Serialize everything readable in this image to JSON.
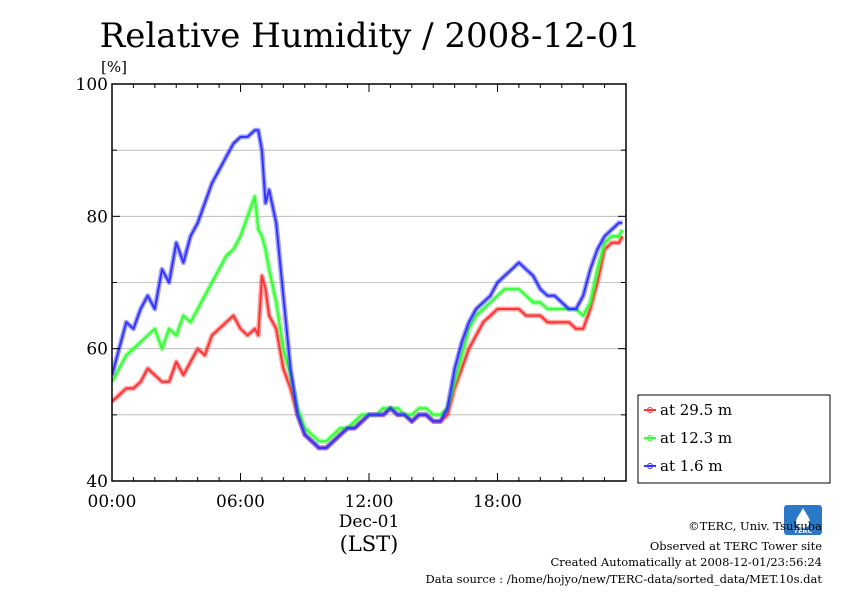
{
  "chart_data": {
    "type": "line",
    "title": "Relative Humidity / 2008-12-01",
    "ylabel": "[%]",
    "xlabel": "(LST)",
    "x_date_label": "Dec-01",
    "ylim": [
      40,
      100
    ],
    "xlim": [
      "00:00",
      "24:00"
    ],
    "y_ticks": [
      40,
      60,
      80,
      100
    ],
    "x_ticks": [
      "00:00",
      "06:00",
      "12:00",
      "18:00"
    ],
    "grid": true,
    "legend_position": "right",
    "series": [
      {
        "name": "at 29.5 m",
        "color": "#ff3333",
        "x": [
          "00:00",
          "00:20",
          "00:40",
          "01:00",
          "01:20",
          "01:40",
          "02:00",
          "02:20",
          "02:40",
          "03:00",
          "03:20",
          "03:40",
          "04:00",
          "04:20",
          "04:40",
          "05:00",
          "05:20",
          "05:40",
          "06:00",
          "06:20",
          "06:40",
          "06:50",
          "07:00",
          "07:10",
          "07:20",
          "07:40",
          "08:00",
          "08:20",
          "08:40",
          "09:00",
          "09:20",
          "09:40",
          "10:00",
          "10:20",
          "10:40",
          "11:00",
          "11:20",
          "11:40",
          "12:00",
          "12:20",
          "12:40",
          "13:00",
          "13:20",
          "13:40",
          "14:00",
          "14:20",
          "14:40",
          "15:00",
          "15:20",
          "15:40",
          "16:00",
          "16:20",
          "16:40",
          "17:00",
          "17:20",
          "17:40",
          "18:00",
          "18:20",
          "18:40",
          "19:00",
          "19:20",
          "19:40",
          "20:00",
          "20:20",
          "20:40",
          "21:00",
          "21:20",
          "21:40",
          "22:00",
          "22:20",
          "22:40",
          "23:00",
          "23:20",
          "23:40",
          "23:50"
        ],
        "values": [
          52,
          53,
          54,
          54,
          55,
          57,
          56,
          55,
          55,
          58,
          56,
          58,
          60,
          59,
          62,
          63,
          64,
          65,
          63,
          62,
          63,
          62,
          71,
          69,
          65,
          63,
          57,
          54,
          50,
          47,
          46,
          45,
          45,
          46,
          47,
          48,
          48,
          49,
          50,
          50,
          50,
          51,
          50,
          50,
          49,
          50,
          50,
          49,
          49,
          50,
          54,
          57,
          60,
          62,
          64,
          65,
          66,
          66,
          66,
          66,
          65,
          65,
          65,
          64,
          64,
          64,
          64,
          63,
          63,
          66,
          70,
          75,
          76,
          76,
          77
        ]
      },
      {
        "name": "at 12.3 m",
        "color": "#33ff33",
        "x": [
          "00:00",
          "00:20",
          "00:40",
          "01:00",
          "01:20",
          "01:40",
          "02:00",
          "02:20",
          "02:40",
          "03:00",
          "03:20",
          "03:40",
          "04:00",
          "04:20",
          "04:40",
          "05:00",
          "05:20",
          "05:40",
          "06:00",
          "06:20",
          "06:40",
          "06:50",
          "07:00",
          "07:10",
          "07:20",
          "07:40",
          "08:00",
          "08:20",
          "08:40",
          "09:00",
          "09:20",
          "09:40",
          "10:00",
          "10:20",
          "10:40",
          "11:00",
          "11:20",
          "11:40",
          "12:00",
          "12:20",
          "12:40",
          "13:00",
          "13:20",
          "13:40",
          "14:00",
          "14:20",
          "14:40",
          "15:00",
          "15:20",
          "15:40",
          "16:00",
          "16:20",
          "16:40",
          "17:00",
          "17:20",
          "17:40",
          "18:00",
          "18:20",
          "18:40",
          "19:00",
          "19:20",
          "19:40",
          "20:00",
          "20:20",
          "20:40",
          "21:00",
          "21:20",
          "21:40",
          "22:00",
          "22:20",
          "22:40",
          "23:00",
          "23:20",
          "23:40",
          "23:50"
        ],
        "values": [
          55,
          57,
          59,
          60,
          61,
          62,
          63,
          60,
          63,
          62,
          65,
          64,
          66,
          68,
          70,
          72,
          74,
          75,
          77,
          80,
          83,
          78,
          77,
          75,
          72,
          67,
          60,
          56,
          51,
          48,
          47,
          46,
          46,
          47,
          48,
          48,
          49,
          50,
          50,
          50,
          51,
          51,
          51,
          50,
          50,
          51,
          51,
          50,
          50,
          51,
          55,
          59,
          63,
          65,
          66,
          67,
          68,
          69,
          69,
          69,
          68,
          67,
          67,
          66,
          66,
          66,
          66,
          66,
          65,
          67,
          72,
          76,
          77,
          77,
          78
        ]
      },
      {
        "name": "at 1.6 m",
        "color": "#3333ff",
        "x": [
          "00:00",
          "00:20",
          "00:40",
          "01:00",
          "01:20",
          "01:40",
          "02:00",
          "02:20",
          "02:40",
          "03:00",
          "03:20",
          "03:40",
          "04:00",
          "04:20",
          "04:40",
          "05:00",
          "05:20",
          "05:40",
          "06:00",
          "06:20",
          "06:40",
          "06:50",
          "07:00",
          "07:10",
          "07:20",
          "07:40",
          "08:00",
          "08:20",
          "08:40",
          "09:00",
          "09:20",
          "09:40",
          "10:00",
          "10:20",
          "10:40",
          "11:00",
          "11:20",
          "11:40",
          "12:00",
          "12:20",
          "12:40",
          "13:00",
          "13:20",
          "13:40",
          "14:00",
          "14:20",
          "14:40",
          "15:00",
          "15:20",
          "15:40",
          "16:00",
          "16:20",
          "16:40",
          "17:00",
          "17:20",
          "17:40",
          "18:00",
          "18:20",
          "18:40",
          "19:00",
          "19:20",
          "19:40",
          "20:00",
          "20:20",
          "20:40",
          "21:00",
          "21:20",
          "21:40",
          "22:00",
          "22:20",
          "22:40",
          "23:00",
          "23:20",
          "23:40",
          "23:50"
        ],
        "values": [
          56,
          60,
          64,
          63,
          66,
          68,
          66,
          72,
          70,
          76,
          73,
          77,
          79,
          82,
          85,
          87,
          89,
          91,
          92,
          92,
          93,
          93,
          90,
          82,
          84,
          79,
          68,
          57,
          50,
          47,
          46,
          45,
          45,
          46,
          47,
          48,
          48,
          49,
          50,
          50,
          50,
          51,
          50,
          50,
          49,
          50,
          50,
          49,
          49,
          51,
          57,
          61,
          64,
          66,
          67,
          68,
          70,
          71,
          72,
          73,
          72,
          71,
          69,
          68,
          68,
          67,
          66,
          66,
          68,
          72,
          75,
          77,
          78,
          79,
          79
        ]
      }
    ]
  },
  "credits": {
    "logo_text": "TERC",
    "line1": "©TERC, Univ. Tsukuba",
    "line2": "Observed at TERC Tower site",
    "line3": "Created Automatically at 2008-12-01/23:56:24",
    "line4": "Data source : /home/hojyo/new/TERC-data/sorted_data/MET.10s.dat"
  }
}
